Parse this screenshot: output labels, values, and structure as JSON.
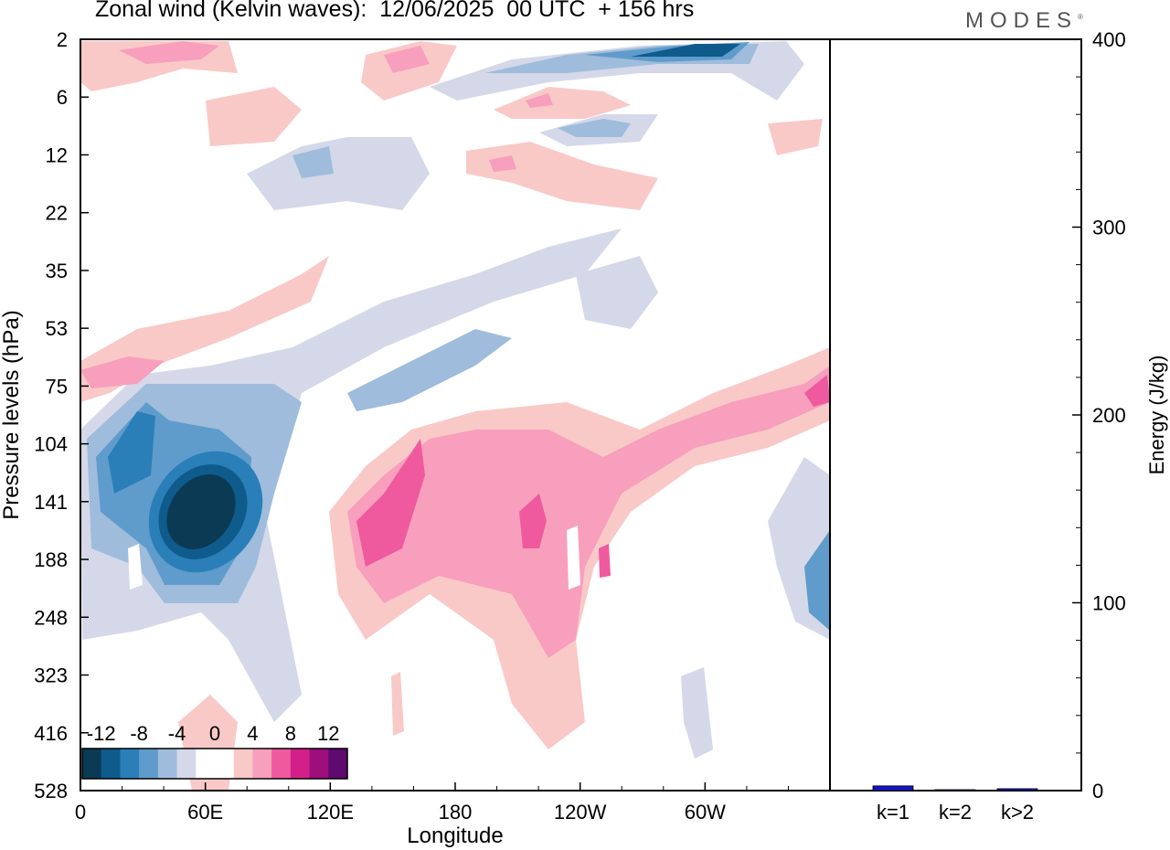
{
  "title": "Zonal wind (Kelvin waves):  12/06/2025  00 UTC  + 156 hrs",
  "brand": "MODES",
  "brand_mark": "®",
  "chart_data": [
    {
      "type": "heatmap",
      "xlabel": "Longitude",
      "ylabel": "Pressure levels (hPa)",
      "x_ticks": [
        "0",
        "60E",
        "120E",
        "180",
        "120W",
        "60W"
      ],
      "y_ticks": [
        "2",
        "6",
        "12",
        "22",
        "35",
        "53",
        "75",
        "104",
        "141",
        "188",
        "248",
        "323",
        "416",
        "528"
      ],
      "colorbar": {
        "labels": [
          "-12",
          "-8",
          "-4",
          "0",
          "4",
          "8",
          "12"
        ],
        "colors": [
          "#0b3a55",
          "#0f5b8c",
          "#2a7fb8",
          "#5f9ccb",
          "#9fbcdc",
          "#d4d8e8",
          "#ffffff",
          "#ffffff",
          "#f9c9c7",
          "#f79fbc",
          "#ef5a9e",
          "#d32088",
          "#9c0f7c",
          "#5e0a6e"
        ]
      },
      "colors": {
        "negative": "#1f4e8c",
        "positive": "#e0458f"
      }
    },
    {
      "type": "bar",
      "categories": [
        "k=1",
        "k=2",
        "k>2"
      ],
      "values": [
        2.5,
        0.5,
        1
      ],
      "ylabel": "Energy (J/kg)",
      "ylim": [
        0,
        400
      ],
      "y_ticks": [
        "0",
        "100",
        "200",
        "300",
        "400"
      ],
      "colors": {
        "bar": "#1414c8"
      }
    }
  ]
}
